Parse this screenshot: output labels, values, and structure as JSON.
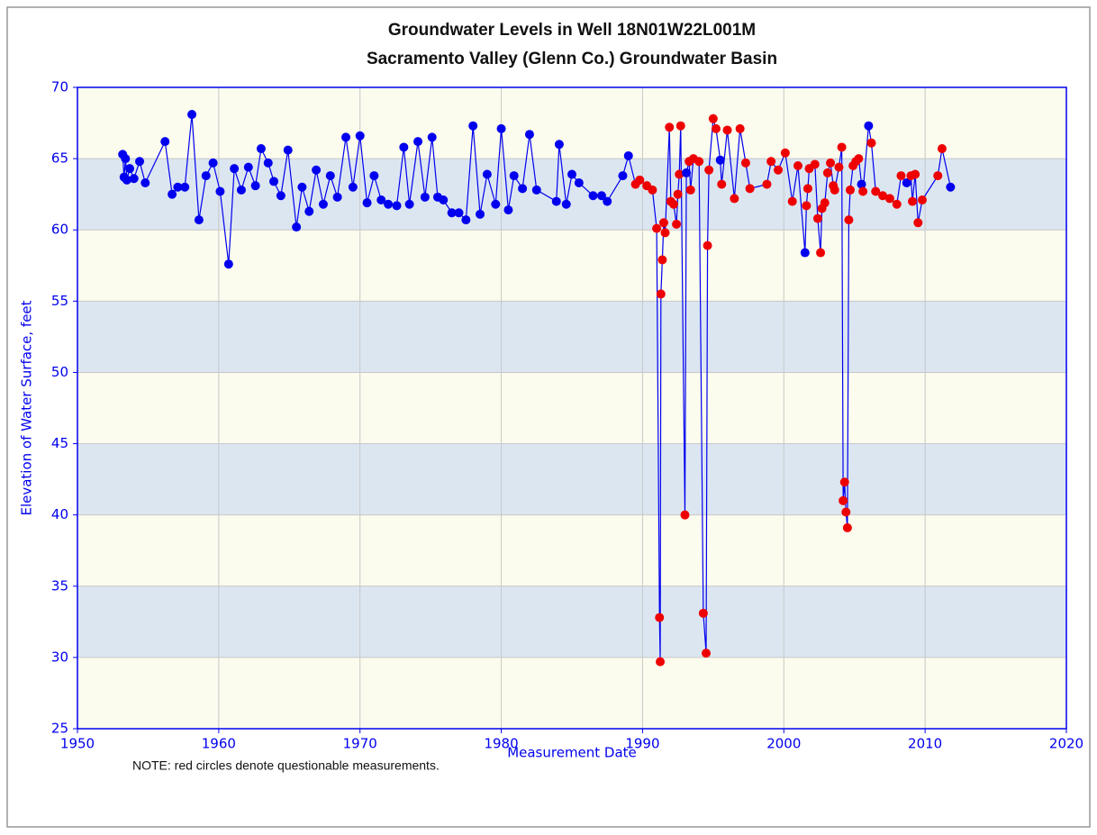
{
  "chart_data": {
    "type": "line",
    "title": "Groundwater Levels in Well 18N01W22L001M",
    "subtitle": "Sacramento Valley (Glenn Co.) Groundwater Basin",
    "x_label": "Measurement Date",
    "y_label": "Elevation of Water Surface, feet",
    "annotation": "NOTE: red circles denote questionable measurements.",
    "xlim": [
      1950,
      2020
    ],
    "xticks": [
      1950,
      1960,
      1970,
      1980,
      1990,
      2000,
      2010,
      2020
    ],
    "ylim": [
      25,
      70
    ],
    "yticks": [
      25,
      30,
      35,
      40,
      45,
      50,
      55,
      60,
      65,
      70
    ],
    "grid": true,
    "band_colors": [
      "#fbfbee",
      "#dce6f1"
    ],
    "series": [
      {
        "color": "#0000ee",
        "x": [
          1953.2,
          1953.3,
          1953.4,
          1953.5,
          1953.7,
          1954.0,
          1954.4,
          1954.8,
          1956.2,
          1956.7,
          1957.1,
          1957.6,
          1958.1,
          1958.6,
          1959.1,
          1959.6,
          1960.1,
          1960.7,
          1961.1,
          1961.6,
          1962.1,
          1962.6,
          1963.0,
          1963.5,
          1963.9,
          1964.4,
          1964.9,
          1965.5,
          1965.9,
          1966.4,
          1966.9,
          1967.4,
          1967.9,
          1968.4,
          1969.0,
          1969.5,
          1970.0,
          1970.5,
          1971.0,
          1971.5,
          1972.0,
          1972.6,
          1973.1,
          1973.5,
          1974.1,
          1974.6,
          1975.1,
          1975.5,
          1975.9,
          1976.5,
          1977.0,
          1977.5,
          1978.0,
          1978.5,
          1979.0,
          1979.6,
          1980.0,
          1980.5,
          1980.9,
          1981.5,
          1982.0,
          1982.5,
          1983.9,
          1984.1,
          1984.6,
          1985.0,
          1985.5,
          1986.5,
          1987.1,
          1987.5,
          1988.6,
          1989.0,
          1989.5,
          1989.8,
          1990.3,
          1990.7,
          1991.0,
          1991.2,
          1991.25,
          1991.3,
          1991.4,
          1991.5,
          1991.6,
          1991.9,
          1992.0,
          1992.2,
          1992.4,
          1992.5,
          1992.6,
          1992.7,
          1993.0,
          1993.1,
          1993.3,
          1993.4,
          1993.6,
          1994.0,
          1994.3,
          1994.5,
          1994.6,
          1994.7,
          1995.0,
          1995.2,
          1995.5,
          1995.6,
          1996.0,
          1996.5,
          1996.9,
          1997.3,
          1997.6,
          1998.8,
          1999.1,
          1999.6,
          2000.1,
          2000.6,
          2001.0,
          2001.5,
          2001.6,
          2001.7,
          2001.8,
          2002.2,
          2002.4,
          2002.6,
          2002.7,
          2002.9,
          2003.1,
          2003.3,
          2003.5,
          2003.6,
          2003.9,
          2004.1,
          2004.2,
          2004.3,
          2004.4,
          2004.5,
          2004.6,
          2004.7,
          2004.9,
          2005.1,
          2005.3,
          2005.5,
          2005.6,
          2006.0,
          2006.2,
          2006.5,
          2007.0,
          2007.5,
          2008.0,
          2008.3,
          2008.7,
          2009.0,
          2009.1,
          2009.3,
          2009.5,
          2009.8,
          2010.9,
          2011.2,
          2011.8
        ],
        "values": [
          65.3,
          63.7,
          65.0,
          63.5,
          64.3,
          63.6,
          64.8,
          63.3,
          66.2,
          62.5,
          63.0,
          63.0,
          68.1,
          60.7,
          63.8,
          64.7,
          62.7,
          57.6,
          64.3,
          62.8,
          64.4,
          63.1,
          65.7,
          64.7,
          63.4,
          62.4,
          65.6,
          60.2,
          63.0,
          61.3,
          64.2,
          61.8,
          63.8,
          62.3,
          66.5,
          63.0,
          66.6,
          61.9,
          63.8,
          62.1,
          61.8,
          61.7,
          65.8,
          61.8,
          66.2,
          62.3,
          66.5,
          62.3,
          62.1,
          61.2,
          61.2,
          60.7,
          67.3,
          61.1,
          63.9,
          61.8,
          67.1,
          61.4,
          63.8,
          62.9,
          66.7,
          62.8,
          62.0,
          66.0,
          61.8,
          63.9,
          63.3,
          62.4,
          62.4,
          62.0,
          63.8,
          65.2,
          63.2,
          63.5,
          63.1,
          62.8,
          60.1,
          32.8,
          29.7,
          55.5,
          57.9,
          60.5,
          59.8,
          67.2,
          62.0,
          61.8,
          60.4,
          62.5,
          63.9,
          67.3,
          40.0,
          64.0,
          64.8,
          62.8,
          65.0,
          64.8,
          33.1,
          30.3,
          58.9,
          64.2,
          67.8,
          67.1,
          64.9,
          63.2,
          67.0,
          62.2,
          67.1,
          64.7,
          62.9,
          63.2,
          64.8,
          64.2,
          65.4,
          62.0,
          64.5,
          58.4,
          61.7,
          62.9,
          64.3,
          64.6,
          60.8,
          58.4,
          61.5,
          61.9,
          64.0,
          64.7,
          63.1,
          62.8,
          64.4,
          65.8,
          41.0,
          42.3,
          40.2,
          39.1,
          60.7,
          62.8,
          64.5,
          64.8,
          65.0,
          63.2,
          62.7,
          67.3,
          66.1,
          62.7,
          62.4,
          62.2,
          61.8,
          63.8,
          63.3,
          63.8,
          62.0,
          63.9,
          60.5,
          62.1,
          63.8,
          65.7,
          63.0
        ],
        "point_colors": [
          "#0000ee",
          "#0000ee",
          "#0000ee",
          "#0000ee",
          "#0000ee",
          "#0000ee",
          "#0000ee",
          "#0000ee",
          "#0000ee",
          "#0000ee",
          "#0000ee",
          "#0000ee",
          "#0000ee",
          "#0000ee",
          "#0000ee",
          "#0000ee",
          "#0000ee",
          "#0000ee",
          "#0000ee",
          "#0000ee",
          "#0000ee",
          "#0000ee",
          "#0000ee",
          "#0000ee",
          "#0000ee",
          "#0000ee",
          "#0000ee",
          "#0000ee",
          "#0000ee",
          "#0000ee",
          "#0000ee",
          "#0000ee",
          "#0000ee",
          "#0000ee",
          "#0000ee",
          "#0000ee",
          "#0000ee",
          "#0000ee",
          "#0000ee",
          "#0000ee",
          "#0000ee",
          "#0000ee",
          "#0000ee",
          "#0000ee",
          "#0000ee",
          "#0000ee",
          "#0000ee",
          "#0000ee",
          "#0000ee",
          "#0000ee",
          "#0000ee",
          "#0000ee",
          "#0000ee",
          "#0000ee",
          "#0000ee",
          "#0000ee",
          "#0000ee",
          "#0000ee",
          "#0000ee",
          "#0000ee",
          "#0000ee",
          "#0000ee",
          "#0000ee",
          "#0000ee",
          "#0000ee",
          "#0000ee",
          "#0000ee",
          "#0000ee",
          "#0000ee",
          "#0000ee",
          "#0000ee",
          "#0000ee",
          "#ee0000",
          "#ee0000",
          "#ee0000",
          "#ee0000",
          "#ee0000",
          "#ee0000",
          "#ee0000",
          "#ee0000",
          "#ee0000",
          "#ee0000",
          "#ee0000",
          "#ee0000",
          "#ee0000",
          "#ee0000",
          "#ee0000",
          "#ee0000",
          "#ee0000",
          "#ee0000",
          "#ee0000",
          "#0000ee",
          "#ee0000",
          "#ee0000",
          "#ee0000",
          "#ee0000",
          "#ee0000",
          "#ee0000",
          "#ee0000",
          "#ee0000",
          "#ee0000",
          "#ee0000",
          "#0000ee",
          "#ee0000",
          "#ee0000",
          "#ee0000",
          "#ee0000",
          "#ee0000",
          "#ee0000",
          "#ee0000",
          "#ee0000",
          "#ee0000",
          "#ee0000",
          "#ee0000",
          "#ee0000",
          "#0000ee",
          "#ee0000",
          "#ee0000",
          "#ee0000",
          "#ee0000",
          "#ee0000",
          "#ee0000",
          "#ee0000",
          "#ee0000",
          "#ee0000",
          "#ee0000",
          "#ee0000",
          "#ee0000",
          "#ee0000",
          "#ee0000",
          "#ee0000",
          "#ee0000",
          "#ee0000",
          "#ee0000",
          "#ee0000",
          "#ee0000",
          "#ee0000",
          "#ee0000",
          "#ee0000",
          "#0000ee",
          "#ee0000",
          "#0000ee",
          "#ee0000",
          "#ee0000",
          "#ee0000",
          "#ee0000",
          "#ee0000",
          "#ee0000",
          "#0000ee",
          "#ee0000",
          "#ee0000",
          "#ee0000",
          "#ee0000",
          "#ee0000",
          "#ee0000",
          "#ee0000",
          "#0000ee"
        ]
      }
    ]
  }
}
